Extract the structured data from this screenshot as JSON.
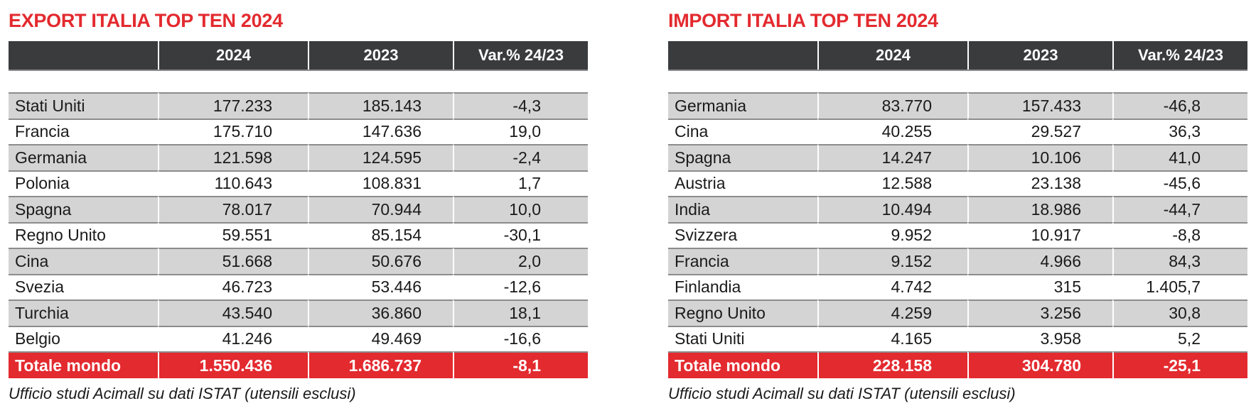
{
  "export": {
    "title": "EXPORT ITALIA TOP TEN 2024",
    "headers": [
      "",
      "2024",
      "2023",
      "Var.% 24/23"
    ],
    "rows": [
      {
        "country": "Stati Uniti",
        "y2024": "177.233",
        "y2023": "185.143",
        "var": "-4,3"
      },
      {
        "country": "Francia",
        "y2024": "175.710",
        "y2023": "147.636",
        "var": "19,0"
      },
      {
        "country": "Germania",
        "y2024": "121.598",
        "y2023": "124.595",
        "var": "-2,4"
      },
      {
        "country": "Polonia",
        "y2024": "110.643",
        "y2023": "108.831",
        "var": "1,7"
      },
      {
        "country": "Spagna",
        "y2024": "78.017",
        "y2023": "70.944",
        "var": "10,0"
      },
      {
        "country": "Regno Unito",
        "y2024": "59.551",
        "y2023": "85.154",
        "var": "-30,1"
      },
      {
        "country": "Cina",
        "y2024": "51.668",
        "y2023": "50.676",
        "var": "2,0"
      },
      {
        "country": "Svezia",
        "y2024": "46.723",
        "y2023": "53.446",
        "var": "-12,6"
      },
      {
        "country": "Turchia",
        "y2024": "43.540",
        "y2023": "36.860",
        "var": "18,1"
      },
      {
        "country": "Belgio",
        "y2024": "41.246",
        "y2023": "49.469",
        "var": "-16,6"
      }
    ],
    "total": {
      "label": "Totale mondo",
      "y2024": "1.550.436",
      "y2023": "1.686.737",
      "var": "-8,1"
    },
    "source": "Ufficio studi Acimall su dati ISTAT (utensili esclusi)"
  },
  "import": {
    "title": "IMPORT ITALIA TOP TEN 2024",
    "headers": [
      "",
      "2024",
      "2023",
      "Var.% 24/23"
    ],
    "rows": [
      {
        "country": "Germania",
        "y2024": "83.770",
        "y2023": "157.433",
        "var": "-46,8"
      },
      {
        "country": "Cina",
        "y2024": "40.255",
        "y2023": "29.527",
        "var": "36,3"
      },
      {
        "country": "Spagna",
        "y2024": "14.247",
        "y2023": "10.106",
        "var": "41,0"
      },
      {
        "country": "Austria",
        "y2024": "12.588",
        "y2023": "23.138",
        "var": "-45,6"
      },
      {
        "country": "India",
        "y2024": "10.494",
        "y2023": "18.986",
        "var": "-44,7"
      },
      {
        "country": "Svizzera",
        "y2024": "9.952",
        "y2023": "10.917",
        "var": "-8,8"
      },
      {
        "country": "Francia",
        "y2024": "9.152",
        "y2023": "4.966",
        "var": "84,3"
      },
      {
        "country": "Finlandia",
        "y2024": "4.742",
        "y2023": "315",
        "var": "1.405,7"
      },
      {
        "country": "Regno Unito",
        "y2024": "4.259",
        "y2023": "3.256",
        "var": "30,8"
      },
      {
        "country": "Stati Uniti",
        "y2024": "4.165",
        "y2023": "3.958",
        "var": "5,2"
      }
    ],
    "total": {
      "label": "Totale mondo",
      "y2024": "228.158",
      "y2023": "304.780",
      "var": "-25,1"
    },
    "source": "Ufficio studi Acimall su dati ISTAT (utensili esclusi)"
  },
  "colors": {
    "accent": "#e32a2f",
    "header_bg": "#3a3b3d",
    "row_grey": "#d4d4d5"
  }
}
